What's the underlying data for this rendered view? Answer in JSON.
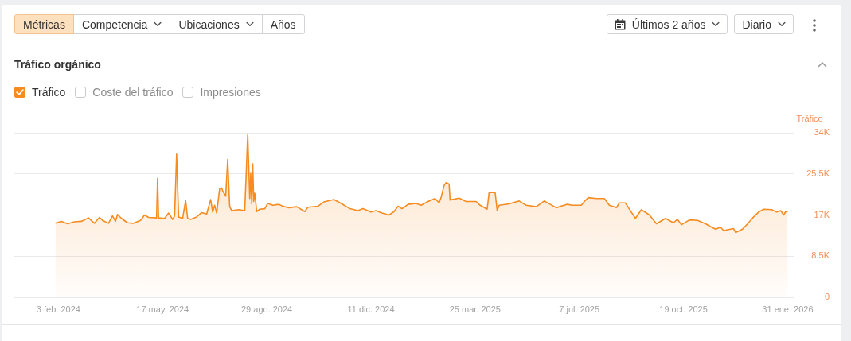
{
  "chart_data": {
    "type": "area",
    "title": "Tráfico orgánico",
    "ylabel": "Tráfico",
    "annotations": [
      "Métricas",
      "Competencia",
      "Ubicaciones",
      "Años",
      "Últimos 2 años",
      "Diario",
      "Coste del tráfico",
      "Impresiones"
    ],
    "x": [
      "2024-01-31",
      "2024-02-06",
      "2024-02-12",
      "2024-02-19",
      "2024-02-26",
      "2024-03-04",
      "2024-03-10",
      "2024-03-15",
      "2024-03-18",
      "2024-03-24",
      "2024-03-28",
      "2024-03-31",
      "2024-04-02",
      "2024-04-06",
      "2024-04-12",
      "2024-04-18",
      "2024-04-25",
      "2024-04-29",
      "2024-05-03",
      "2024-05-11",
      "2024-05-12",
      "2024-05-13",
      "2024-05-19",
      "2024-05-23",
      "2024-05-27",
      "2024-05-29",
      "2024-05-31",
      "2024-06-02",
      "2024-06-06",
      "2024-06-09",
      "2024-06-11",
      "2024-06-14",
      "2024-06-20",
      "2024-06-25",
      "2024-06-30",
      "2024-07-04",
      "2024-07-06",
      "2024-07-08",
      "2024-07-10",
      "2024-07-13",
      "2024-07-15",
      "2024-07-16",
      "2024-07-19",
      "2024-07-21",
      "2024-07-23",
      "2024-07-25",
      "2024-08-01",
      "2024-08-07",
      "2024-08-10",
      "2024-08-12",
      "2024-08-13",
      "2024-08-14",
      "2024-08-15",
      "2024-08-16",
      "2024-08-17",
      "2024-08-19",
      "2024-08-22",
      "2024-08-27",
      "2024-08-30",
      "2024-09-04",
      "2024-09-10",
      "2024-09-14",
      "2024-09-20",
      "2024-09-28",
      "2024-10-06",
      "2024-10-09",
      "2024-10-19",
      "2024-10-25",
      "2024-11-04",
      "2024-11-12",
      "2024-11-20",
      "2024-11-28",
      "2024-12-03",
      "2024-12-11",
      "2024-12-16",
      "2024-12-22",
      "2024-12-29",
      "2025-01-03",
      "2025-01-07",
      "2025-01-11",
      "2025-01-17",
      "2025-01-25",
      "2025-01-30",
      "2025-02-06",
      "2025-02-13",
      "2025-02-17",
      "2025-02-19",
      "2025-02-22",
      "2025-02-24",
      "2025-02-27",
      "2025-02-28",
      "2025-03-09",
      "2025-03-16",
      "2025-03-26",
      "2025-03-30",
      "2025-04-06",
      "2025-04-08",
      "2025-04-14",
      "2025-04-16",
      "2025-04-18",
      "2025-04-28",
      "2025-05-08",
      "2025-05-15",
      "2025-05-25",
      "2025-06-02",
      "2025-06-08",
      "2025-06-14",
      "2025-06-25",
      "2025-06-30",
      "2025-07-09",
      "2025-07-12",
      "2025-07-16",
      "2025-07-24",
      "2025-08-01",
      "2025-08-06",
      "2025-08-13",
      "2025-08-16",
      "2025-08-22",
      "2025-08-26",
      "2025-09-01",
      "2025-09-07",
      "2025-09-15",
      "2025-09-22",
      "2025-10-01",
      "2025-10-09",
      "2025-10-13",
      "2025-10-17",
      "2025-10-25",
      "2025-11-02",
      "2025-11-10",
      "2025-11-16",
      "2025-11-20",
      "2025-11-25",
      "2025-11-28",
      "2025-12-08",
      "2025-12-10",
      "2025-12-17",
      "2025-12-22",
      "2025-12-27",
      "2026-01-02",
      "2026-01-07",
      "2026-01-15",
      "2026-01-20",
      "2026-01-24",
      "2026-01-27",
      "2026-01-29",
      "2026-01-31"
    ],
    "series": [
      {
        "name": "Tráfico",
        "color": "#f68b1f",
        "values": [
          15300,
          15700,
          15200,
          15600,
          15700,
          16400,
          15300,
          16500,
          15900,
          15300,
          16800,
          15700,
          17100,
          16300,
          15400,
          15300,
          15900,
          17000,
          16500,
          16400,
          24600,
          16400,
          16300,
          17400,
          16100,
          16800,
          29600,
          16600,
          16300,
          20000,
          16300,
          16100,
          16600,
          17500,
          17200,
          20200,
          17600,
          19000,
          17400,
          22500,
          22600,
          22000,
          20900,
          28500,
          18700,
          17900,
          18100,
          17900,
          33600,
          20400,
          25600,
          19300,
          27600,
          19800,
          21500,
          17700,
          18200,
          18300,
          19400,
          19000,
          19200,
          18800,
          18500,
          18700,
          17700,
          18600,
          18800,
          19700,
          20200,
          19300,
          18300,
          17900,
          18300,
          17600,
          17900,
          17400,
          17000,
          17700,
          18800,
          18300,
          19200,
          19400,
          19000,
          19800,
          20400,
          19500,
          20600,
          23100,
          23700,
          23400,
          20100,
          20500,
          19800,
          19800,
          19000,
          18200,
          21700,
          21600,
          17900,
          19000,
          19300,
          19900,
          19000,
          18700,
          19900,
          19200,
          18500,
          19200,
          19000,
          19000,
          19800,
          20600,
          20400,
          20400,
          19000,
          18500,
          19500,
          19500,
          18200,
          16300,
          18100,
          17000,
          15200,
          16300,
          15400,
          16100,
          15000,
          16000,
          15900,
          15200,
          14500,
          14100,
          14500,
          13800,
          14200,
          13400,
          14100,
          15200,
          16400,
          17600,
          18200,
          18100,
          17600,
          17900,
          17000,
          17700,
          17700
        ]
      }
    ],
    "xlim": [
      "2023-12-21",
      "2026-02-06"
    ],
    "xticks": [
      {
        "value": "2024-02-03",
        "label": "3 feb. 2024"
      },
      {
        "value": "2024-05-17",
        "label": "17 may. 2024"
      },
      {
        "value": "2024-08-29",
        "label": "29 ago. 2024"
      },
      {
        "value": "2024-12-11",
        "label": "11 dic. 2024"
      },
      {
        "value": "2025-03-25",
        "label": "25 mar. 2025"
      },
      {
        "value": "2025-07-07",
        "label": "7 jul. 2025"
      },
      {
        "value": "2025-10-19",
        "label": "19 oct. 2025"
      },
      {
        "value": "2026-01-31",
        "label": "31 ene. 2026"
      }
    ],
    "ylim": [
      0,
      34000
    ],
    "yticks": [
      0,
      {
        "value": 8500,
        "label": "8.5K"
      },
      {
        "value": 17000,
        "label": "17K"
      },
      {
        "value": 25500,
        "label": "25.5K"
      },
      {
        "value": 34000,
        "label": "34K"
      }
    ],
    "grid": "y",
    "legend": "top left"
  }
}
